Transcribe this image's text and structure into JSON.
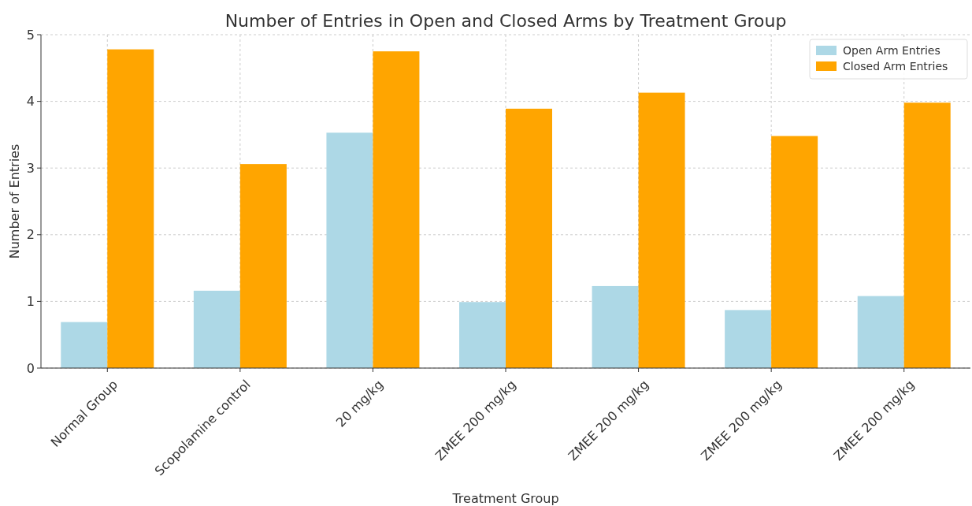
{
  "chart_data": {
    "type": "bar",
    "title": "Number of Entries in Open and Closed Arms by Treatment Group",
    "xlabel": "Treatment Group",
    "ylabel": "Number of Entries",
    "categories": [
      "Normal Group",
      "Scopolamine control",
      "20 mg/kg",
      "ZMEE 200 mg/kg",
      "ZMEE 200 mg/kg",
      "ZMEE 200 mg/kg",
      "ZMEE 200 mg/kg"
    ],
    "series": [
      {
        "name": "Open Arm Entries",
        "color": "#add8e6",
        "values": [
          0.69,
          1.16,
          3.53,
          0.99,
          1.23,
          0.87,
          1.08
        ]
      },
      {
        "name": "Closed Arm Entries",
        "color": "#ffa500",
        "values": [
          4.78,
          3.06,
          4.75,
          3.89,
          4.13,
          3.48,
          3.98
        ]
      }
    ],
    "ylim": [
      0,
      5
    ],
    "yticks": [
      0,
      1,
      2,
      3,
      4,
      5
    ],
    "grid": true,
    "legend": "top right"
  }
}
